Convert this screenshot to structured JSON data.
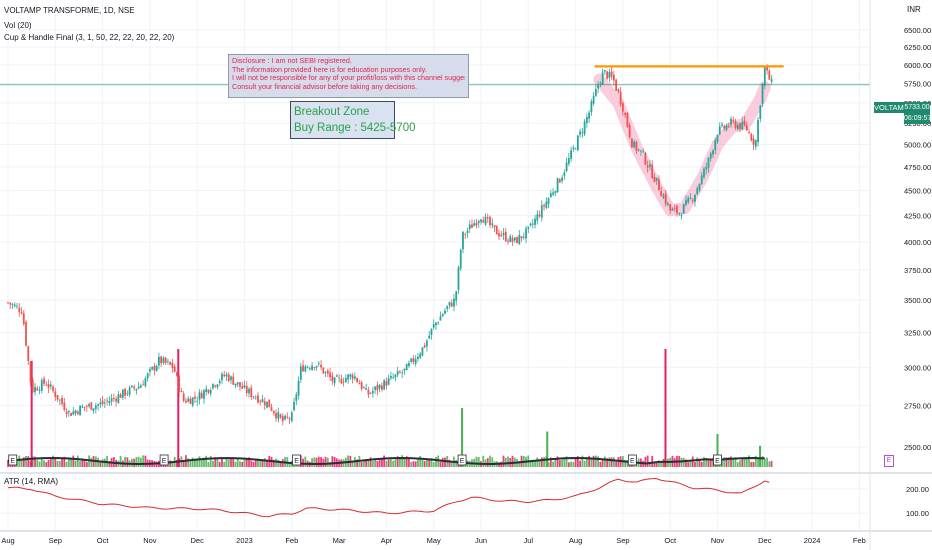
{
  "header": {
    "symbol_line": "VOLTAMP TRANSFORME, 1D, NSE",
    "vol_indicator": "Vol (20)",
    "cup_indicator": "Cup & Handle Final (3, 1, 50, 22, 22, 20, 22, 20)",
    "atr_indicator": "ATR (14, RMA)",
    "currency": "INR"
  },
  "price_badge": {
    "ticker": "VOLTAMP",
    "price": "5733.00",
    "countdown": "06:09:57"
  },
  "disclosure": {
    "lines": [
      "Disclosure : I am not SEBI registered.",
      "The information provided here is for education purposes only.",
      "I will not be responsible for any of your profit/loss with this channel suggestions.",
      "Consult your financial advisor before taking any decisions."
    ]
  },
  "breakout_box": {
    "line1": "Breakout Zone",
    "line2": "Buy Range : 5425-5700"
  },
  "earnings_marker": "E",
  "colors": {
    "up": "#26a69a",
    "down": "#ef5350",
    "volume_up": "#4caf50",
    "volume_down": "#e91e63",
    "resistance": "#ff9800",
    "cup": "#f48fb1",
    "atr": "#d32f2f",
    "vol_ma": "#2a2e39",
    "price_line": "#1f8a6e"
  },
  "chart_data": [
    {
      "type": "candlestick",
      "name": "VOLTAMP TRANSFORME",
      "y_axis": {
        "scale": "log",
        "ticks": [
          2500,
          2750,
          3000,
          3250,
          3500,
          3750,
          4000,
          4250,
          4500,
          4750,
          5000,
          5250,
          5500,
          5750,
          6000,
          6250,
          6500
        ],
        "tick_labels": [
          "2500.00",
          "2750.00",
          "3000.00",
          "3250.00",
          "3500.00",
          "3750.00",
          "4000.00",
          "4250.00",
          "4500.00",
          "4750.00",
          "5000.00",
          "5250.00",
          "5500.00",
          "5750.00",
          "6000.00",
          "6250.00",
          "6500.00"
        ]
      },
      "x_axis": {
        "months": [
          "Aug",
          "Sep",
          "Oct",
          "Nov",
          "Dec",
          "2023",
          "Feb",
          "Mar",
          "Apr",
          "May",
          "Jun",
          "Jul",
          "Aug",
          "Sep",
          "Oct",
          "Nov",
          "Dec",
          "2024",
          "Feb"
        ],
        "month_index": [
          0,
          1,
          2,
          3,
          4,
          5,
          6,
          7,
          8,
          9,
          10,
          11,
          12,
          13,
          14,
          15,
          16,
          17,
          18
        ]
      },
      "close_path": [
        {
          "m": 0.0,
          "v": 3480
        },
        {
          "m": 0.3,
          "v": 3420
        },
        {
          "m": 0.5,
          "v": 2850
        },
        {
          "m": 0.8,
          "v": 2900
        },
        {
          "m": 1.0,
          "v": 2820
        },
        {
          "m": 1.3,
          "v": 2700
        },
        {
          "m": 1.6,
          "v": 2740
        },
        {
          "m": 2.0,
          "v": 2760
        },
        {
          "m": 2.4,
          "v": 2820
        },
        {
          "m": 2.8,
          "v": 2880
        },
        {
          "m": 3.2,
          "v": 3050
        },
        {
          "m": 3.5,
          "v": 3000
        },
        {
          "m": 3.7,
          "v": 2780
        },
        {
          "m": 4.0,
          "v": 2800
        },
        {
          "m": 4.3,
          "v": 2880
        },
        {
          "m": 4.6,
          "v": 2950
        },
        {
          "m": 5.0,
          "v": 2850
        },
        {
          "m": 5.5,
          "v": 2760
        },
        {
          "m": 5.8,
          "v": 2650
        },
        {
          "m": 6.0,
          "v": 2680
        },
        {
          "m": 6.2,
          "v": 3000
        },
        {
          "m": 6.5,
          "v": 3030
        },
        {
          "m": 6.9,
          "v": 2900
        },
        {
          "m": 7.3,
          "v": 2950
        },
        {
          "m": 7.6,
          "v": 2820
        },
        {
          "m": 8.0,
          "v": 2900
        },
        {
          "m": 8.4,
          "v": 2980
        },
        {
          "m": 8.8,
          "v": 3150
        },
        {
          "m": 9.0,
          "v": 3300
        },
        {
          "m": 9.3,
          "v": 3450
        },
        {
          "m": 9.45,
          "v": 3500
        },
        {
          "m": 9.5,
          "v": 3650
        },
        {
          "m": 9.6,
          "v": 4050
        },
        {
          "m": 9.8,
          "v": 4150
        },
        {
          "m": 10.0,
          "v": 4250
        },
        {
          "m": 10.3,
          "v": 4100
        },
        {
          "m": 10.7,
          "v": 4000
        },
        {
          "m": 11.0,
          "v": 4100
        },
        {
          "m": 11.4,
          "v": 4400
        },
        {
          "m": 11.7,
          "v": 4650
        },
        {
          "m": 12.0,
          "v": 5000
        },
        {
          "m": 12.3,
          "v": 5400
        },
        {
          "m": 12.5,
          "v": 5780
        },
        {
          "m": 12.6,
          "v": 5900
        },
        {
          "m": 12.8,
          "v": 5800
        },
        {
          "m": 13.0,
          "v": 5450
        },
        {
          "m": 13.2,
          "v": 5000
        },
        {
          "m": 13.4,
          "v": 4900
        },
        {
          "m": 13.7,
          "v": 4600
        },
        {
          "m": 14.0,
          "v": 4300
        },
        {
          "m": 14.2,
          "v": 4280
        },
        {
          "m": 14.5,
          "v": 4450
        },
        {
          "m": 14.8,
          "v": 4800
        },
        {
          "m": 15.0,
          "v": 5150
        },
        {
          "m": 15.3,
          "v": 5250
        },
        {
          "m": 15.6,
          "v": 5200
        },
        {
          "m": 15.8,
          "v": 5000
        },
        {
          "m": 15.9,
          "v": 5500
        },
        {
          "m": 16.0,
          "v": 5950
        },
        {
          "m": 16.15,
          "v": 5733
        }
      ],
      "resistance_line": {
        "value": 5980,
        "from_month": 12.4,
        "to_month": 16.4
      },
      "cup_path": [
        {
          "m": 12.5,
          "v": 5800
        },
        {
          "m": 12.9,
          "v": 5500
        },
        {
          "m": 13.3,
          "v": 4950
        },
        {
          "m": 13.7,
          "v": 4550
        },
        {
          "m": 14.0,
          "v": 4300
        },
        {
          "m": 14.3,
          "v": 4320
        },
        {
          "m": 14.7,
          "v": 4650
        },
        {
          "m": 15.0,
          "v": 5000
        },
        {
          "m": 15.3,
          "v": 5200
        },
        {
          "m": 15.6,
          "v": 5250
        },
        {
          "m": 15.9,
          "v": 5550
        },
        {
          "m": 16.0,
          "v": 5700
        }
      ],
      "earnings_marker_months": [
        0.1,
        3.3,
        6.1,
        9.6,
        13.2,
        15.0
      ]
    },
    {
      "type": "bar",
      "name": "Vol (20)",
      "spikes": [
        {
          "m": 0.5,
          "level": 0.9,
          "direction": "down"
        },
        {
          "m": 3.6,
          "level": 1.0,
          "direction": "down"
        },
        {
          "m": 9.6,
          "level": 0.5,
          "direction": "up"
        },
        {
          "m": 11.4,
          "level": 0.3,
          "direction": "up"
        },
        {
          "m": 13.9,
          "level": 1.0,
          "direction": "down"
        },
        {
          "m": 15.0,
          "level": 0.28,
          "direction": "up"
        },
        {
          "m": 15.9,
          "level": 0.18,
          "direction": "up"
        }
      ]
    },
    {
      "type": "line",
      "name": "ATR (14, RMA)",
      "y_axis": {
        "ticks": [
          100,
          200
        ],
        "tick_labels": [
          "100.00",
          "200.00"
        ]
      },
      "values": [
        {
          "m": 0.0,
          "v": 205
        },
        {
          "m": 0.5,
          "v": 200
        },
        {
          "m": 1.0,
          "v": 170
        },
        {
          "m": 2.0,
          "v": 138
        },
        {
          "m": 3.0,
          "v": 122
        },
        {
          "m": 4.0,
          "v": 118
        },
        {
          "m": 4.5,
          "v": 112
        },
        {
          "m": 5.0,
          "v": 100
        },
        {
          "m": 5.5,
          "v": 88
        },
        {
          "m": 6.0,
          "v": 98
        },
        {
          "m": 6.3,
          "v": 120
        },
        {
          "m": 7.0,
          "v": 115
        },
        {
          "m": 8.0,
          "v": 100
        },
        {
          "m": 9.0,
          "v": 110
        },
        {
          "m": 9.5,
          "v": 150
        },
        {
          "m": 9.8,
          "v": 165
        },
        {
          "m": 10.5,
          "v": 150
        },
        {
          "m": 11.0,
          "v": 148
        },
        {
          "m": 11.5,
          "v": 155
        },
        {
          "m": 12.0,
          "v": 170
        },
        {
          "m": 12.5,
          "v": 205
        },
        {
          "m": 12.9,
          "v": 240
        },
        {
          "m": 13.3,
          "v": 228
        },
        {
          "m": 13.7,
          "v": 246
        },
        {
          "m": 14.0,
          "v": 230
        },
        {
          "m": 14.5,
          "v": 205
        },
        {
          "m": 15.0,
          "v": 195
        },
        {
          "m": 15.5,
          "v": 180
        },
        {
          "m": 16.0,
          "v": 235
        },
        {
          "m": 16.15,
          "v": 222
        }
      ]
    }
  ]
}
